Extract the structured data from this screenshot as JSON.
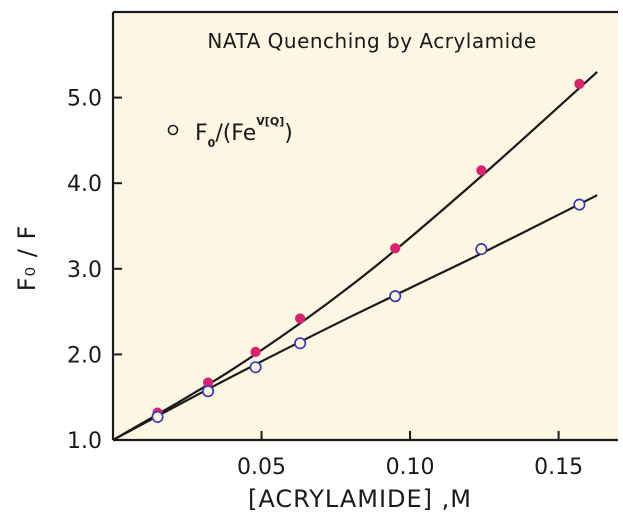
{
  "chart_data": {
    "type": "scatter",
    "title": "NATA Quenching by Acrylamide",
    "xlabel": "[ACRYLAMIDE] ,M",
    "ylabel": "F₀ / F",
    "xlim": [
      0,
      0.17
    ],
    "ylim": [
      1.0,
      6.0
    ],
    "x_ticks": [
      0.05,
      0.1,
      0.15
    ],
    "x_tick_labels": [
      "0.05",
      "0.10",
      "0.15"
    ],
    "y_ticks": [
      1.0,
      2.0,
      3.0,
      4.0,
      5.0
    ],
    "y_tick_labels": [
      "1.0",
      "2.0",
      "3.0",
      "4.0",
      "5.0"
    ],
    "grid": false,
    "legend_position": "top-left",
    "legend": {
      "marker": "open-circle",
      "label_prefix": "F",
      "label_sub": "0",
      "label_mid": "/(Fe",
      "label_sup": "V[Q]",
      "label_suffix": ")"
    },
    "series": [
      {
        "marker": "filled-circle",
        "color": "#d6246e",
        "x": [
          0.015,
          0.032,
          0.048,
          0.063,
          0.095,
          0.124,
          0.157
        ],
        "y": [
          1.32,
          1.67,
          2.03,
          2.42,
          3.24,
          4.15,
          5.16
        ],
        "fit": {
          "x": [
            0,
            0.04,
            0.08,
            0.12,
            0.163
          ],
          "y": [
            1.0,
            1.82,
            2.8,
            3.96,
            5.3
          ]
        }
      },
      {
        "marker": "open-circle",
        "color": "#3a3ab0",
        "x": [
          0.015,
          0.032,
          0.048,
          0.063,
          0.095,
          0.124,
          0.157
        ],
        "y": [
          1.27,
          1.57,
          1.85,
          2.13,
          2.68,
          3.23,
          3.75
        ],
        "fit": {
          "x": [
            0,
            0.04,
            0.08,
            0.12,
            0.163
          ],
          "y": [
            1.0,
            1.74,
            2.44,
            3.11,
            3.86
          ]
        }
      }
    ],
    "colors": {
      "background": "#fdf6e3",
      "axis": "#1a1a1a",
      "fit_line": "#1a1a1a"
    }
  }
}
